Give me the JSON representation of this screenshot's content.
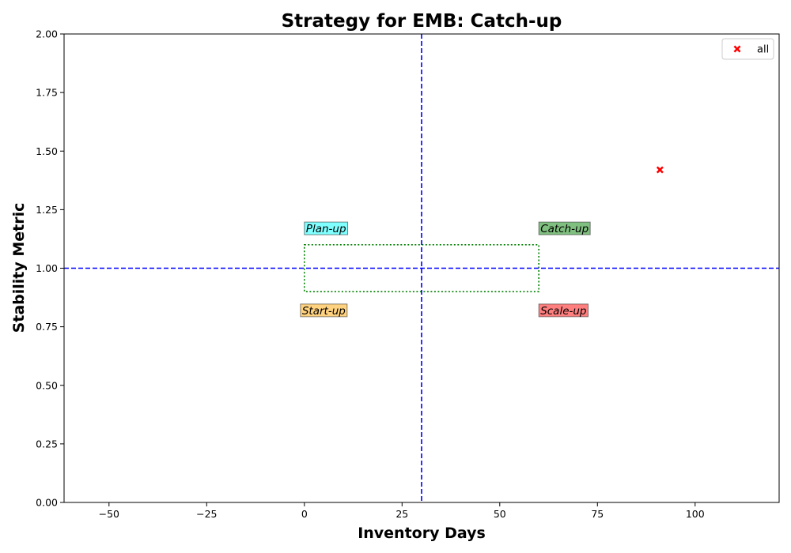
{
  "chart_data": {
    "type": "scatter",
    "title": "Strategy for EMB: Catch-up",
    "xlabel": "Inventory Days",
    "ylabel": "Stability Metric",
    "xlim": [
      -61.5,
      121.5
    ],
    "ylim": [
      0,
      2
    ],
    "xticks": [
      -50,
      -25,
      0,
      25,
      50,
      75,
      100
    ],
    "xtick_labels": [
      "−50",
      "−25",
      "0",
      "25",
      "50",
      "75",
      "100"
    ],
    "yticks": [
      0,
      0.25,
      0.5,
      0.75,
      1.0,
      1.25,
      1.5,
      1.75,
      2.0
    ],
    "ytick_labels": [
      "0.00",
      "0.25",
      "0.50",
      "0.75",
      "1.00",
      "1.25",
      "1.50",
      "1.75",
      "2.00"
    ],
    "grid": false,
    "legend_position": "top-right",
    "series": [
      {
        "name": "all",
        "marker": "x-filled",
        "color": "#ff0000",
        "points": [
          {
            "x": 91,
            "y": 1.42
          }
        ]
      }
    ],
    "reference_lines": {
      "vertical_x": 30,
      "horizontal_y": 1.0,
      "color": "#0000ff",
      "style": "dashed"
    },
    "threshold_box": {
      "x": [
        0,
        60
      ],
      "y": [
        0.9,
        1.1
      ],
      "color": "#008000",
      "style": "dotted"
    },
    "quadrant_labels": [
      {
        "text": "Plan-up",
        "x": 0,
        "y": 1.17,
        "color": "#00ffff"
      },
      {
        "text": "Catch-up",
        "x": 60,
        "y": 1.17,
        "color": "#008000"
      },
      {
        "text": "Start-up",
        "x": -1,
        "y": 0.82,
        "color": "#ffa500"
      },
      {
        "text": "Scale-up",
        "x": 60,
        "y": 0.82,
        "color": "#ff0000"
      }
    ]
  }
}
